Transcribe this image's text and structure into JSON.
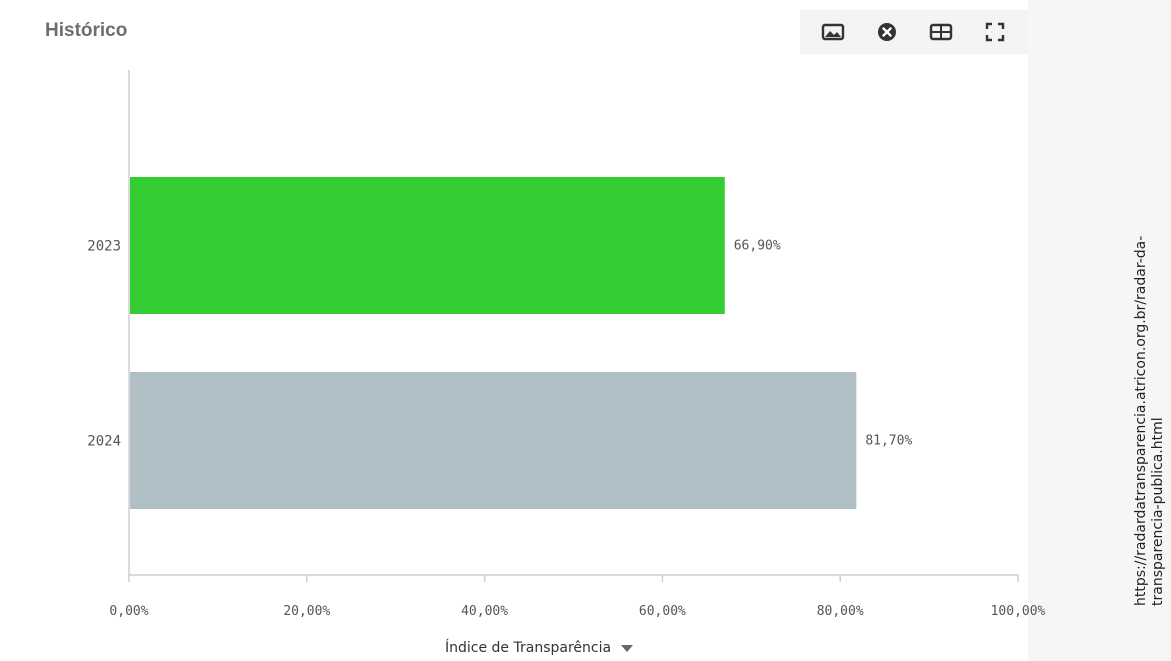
{
  "panel": {
    "title": "Histórico"
  },
  "toolbar": {
    "icons": [
      "image-icon",
      "close-circle-icon",
      "table-icon",
      "fullscreen-icon"
    ]
  },
  "chart_data": {
    "type": "bar",
    "orientation": "horizontal",
    "categories": [
      "2023",
      "2024"
    ],
    "values": [
      66.9,
      81.7
    ],
    "data_labels": [
      "66,90%",
      "81,70%"
    ],
    "colors": [
      "#33cc33",
      "#b0bec5"
    ],
    "xlim": [
      0,
      100
    ],
    "x_ticks": [
      0,
      20,
      40,
      60,
      80,
      100
    ],
    "x_tick_labels": [
      "0,00%",
      "20,00%",
      "40,00%",
      "60,00%",
      "80,00%",
      "100,00%"
    ],
    "xlabel": "Índice de Transparência",
    "grid": false
  },
  "side_note": {
    "url": "https://radardatransparencia.atricon.org.br/radar-da-transparencia-publica.html"
  }
}
